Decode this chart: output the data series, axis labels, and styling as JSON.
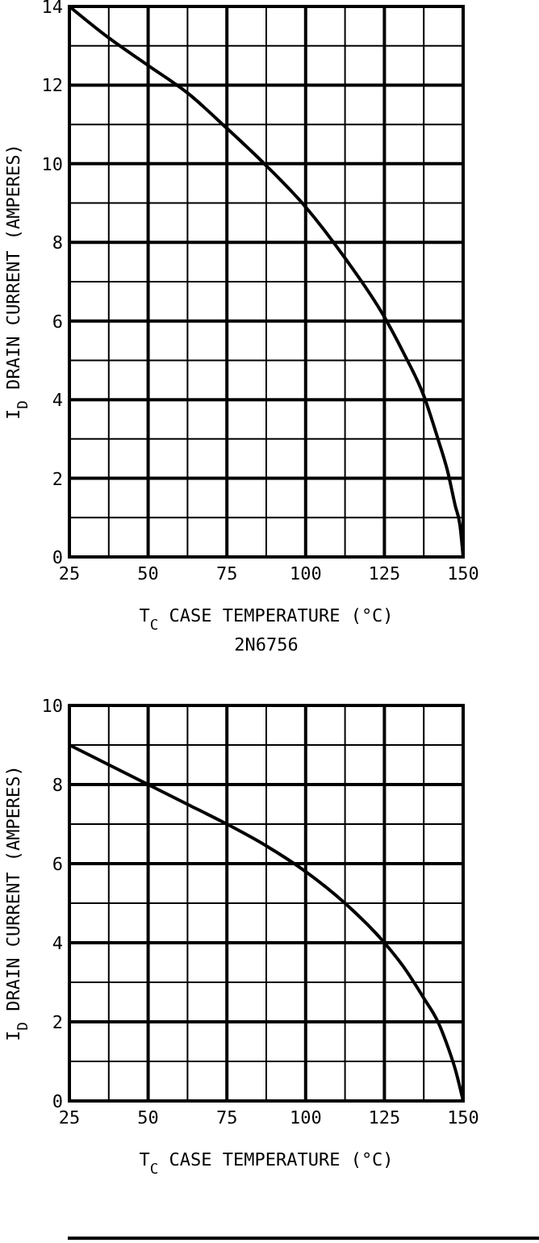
{
  "chart_data": [
    {
      "type": "line",
      "xlabel": "T$_{C}$ CASE TEMPERATURE (°C)",
      "ylabel": "I$_{D}$ DRAIN CURRENT (AMPERES)",
      "annotations": [
        "2N6756"
      ],
      "x": [
        25,
        37.5,
        50,
        62.5,
        75,
        87.5,
        100,
        112.5,
        125,
        131,
        137.5,
        142,
        145,
        147.5,
        149,
        150
      ],
      "series": [
        {
          "color": "#000000",
          "values": [
            14,
            13.2,
            12.5,
            11.8,
            10.9,
            9.95,
            8.9,
            7.6,
            6.1,
            5.2,
            4.1,
            3,
            2.2,
            1.3,
            0.8,
            0
          ]
        }
      ],
      "xlim": [
        25,
        150
      ],
      "xticks": [
        25,
        50,
        75,
        100,
        125,
        150
      ],
      "ylim": [
        0,
        14
      ],
      "yticks": [
        0,
        2,
        4,
        6,
        8,
        10,
        12,
        14
      ],
      "grid": true,
      "marker": "none",
      "line_style": "solid"
    },
    {
      "type": "line",
      "xlabel": "T$_{C}$ CASE TEMPERATURE (°C)",
      "ylabel": "I$_{D}$ DRAIN CURRENT (AMPERES)",
      "x": [
        25,
        37.5,
        50,
        62.5,
        75,
        87.5,
        100,
        112.5,
        125,
        131,
        137.5,
        142,
        145,
        147.5,
        150
      ],
      "series": [
        {
          "color": "#000000",
          "values": [
            9,
            8.5,
            8,
            7.5,
            7,
            6.45,
            5.8,
            5,
            4,
            3.4,
            2.6,
            2,
            1.4,
            0.8,
            0
          ]
        }
      ],
      "xlim": [
        25,
        150
      ],
      "xticks": [
        25,
        50,
        75,
        100,
        125,
        150
      ],
      "ylim": [
        0,
        10
      ],
      "yticks": [
        0,
        2,
        4,
        6,
        8,
        10
      ],
      "grid": true,
      "marker": "none",
      "line_style": "solid"
    }
  ]
}
